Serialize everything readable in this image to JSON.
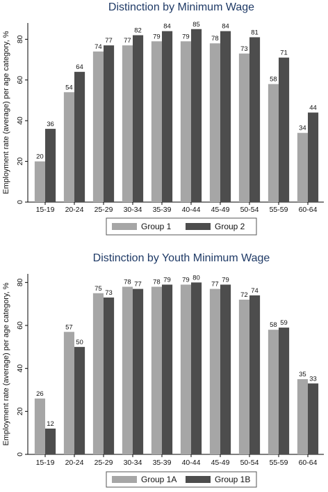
{
  "colors": {
    "series_a": "#a6a6a6",
    "series_b": "#4d4d4d",
    "title": "#1f3a66"
  },
  "chart_data": [
    {
      "type": "bar",
      "title": "Distinction by Minimum Wage",
      "ylabel": "Employment rate (average) per age category, %",
      "xlabel": "",
      "categories": [
        "15-19",
        "20-24",
        "25-29",
        "30-34",
        "35-39",
        "40-44",
        "45-49",
        "50-54",
        "55-59",
        "60-64"
      ],
      "series": [
        {
          "name": "Group 1",
          "values": [
            20,
            54,
            74,
            77,
            79,
            79,
            78,
            73,
            58,
            34
          ]
        },
        {
          "name": "Group 2",
          "values": [
            36,
            64,
            77,
            82,
            84,
            85,
            84,
            81,
            71,
            44
          ]
        }
      ],
      "ylim": [
        0,
        88
      ],
      "yticks": [
        0,
        20,
        40,
        60,
        80
      ],
      "legend": "bottom",
      "grid": false
    },
    {
      "type": "bar",
      "title": "Distinction by Youth Minimum Wage",
      "ylabel": "Employment rate (average) per age category, %",
      "xlabel": "",
      "categories": [
        "15-19",
        "20-24",
        "25-29",
        "30-34",
        "35-39",
        "40-44",
        "45-49",
        "50-54",
        "55-59",
        "60-64"
      ],
      "series": [
        {
          "name": "Group 1A",
          "values": [
            26,
            57,
            75,
            78,
            78,
            79,
            77,
            72,
            58,
            35
          ]
        },
        {
          "name": "Group 1B",
          "values": [
            12,
            50,
            73,
            77,
            79,
            80,
            79,
            74,
            59,
            33
          ]
        }
      ],
      "ylim": [
        0,
        84
      ],
      "yticks": [
        0,
        20,
        40,
        60,
        80
      ],
      "legend": "bottom",
      "grid": false
    }
  ]
}
